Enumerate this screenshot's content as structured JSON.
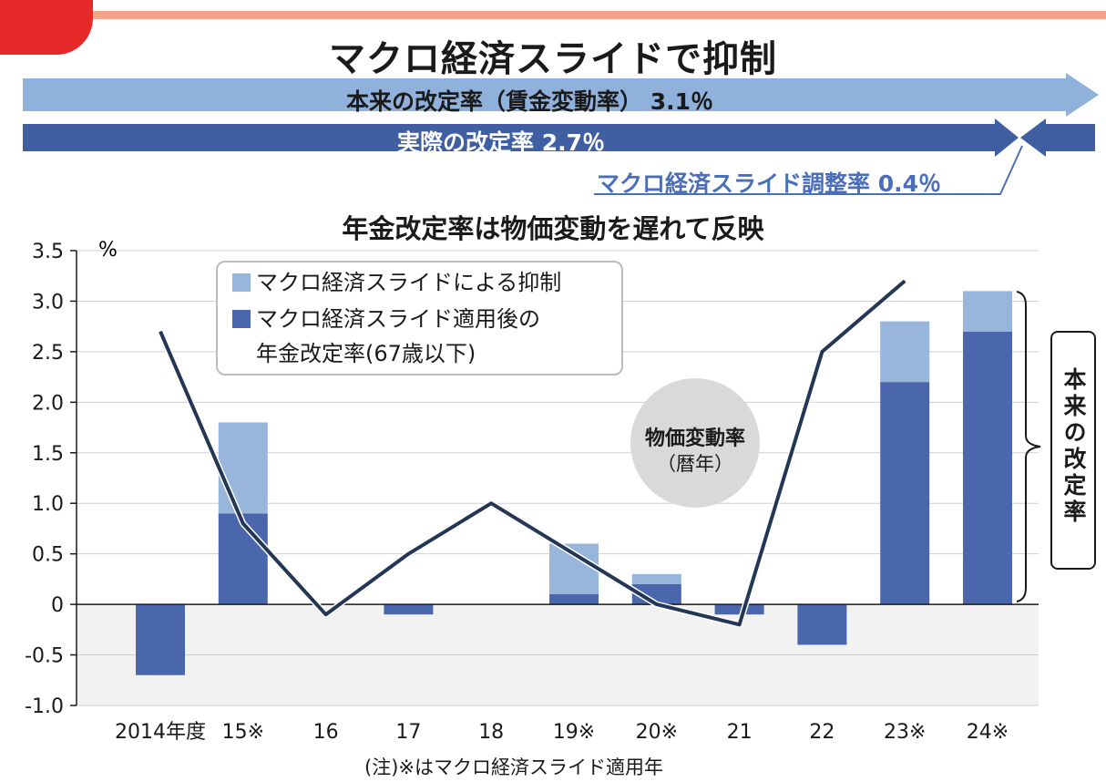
{
  "header": {
    "title": "マクロ経済スライドで抑制",
    "arrow_original": "本来の改定率（賃金変動率） 3.1％",
    "arrow_actual": "実際の改定率 2.7％",
    "macro_adjustment": "マクロ経済スライド調整率 0.4％"
  },
  "subtitle": "年金改定率は物価変動を遅れて反映",
  "legend": {
    "suppression": "マクロ経済スライドによる抑制",
    "applied_line1": "マクロ経済スライド適用後の",
    "applied_line2": "年金改定率(67歳以下)"
  },
  "price_bubble": {
    "label": "物価変動率",
    "sub": "（暦年）"
  },
  "side_label": "本来の改定率",
  "note": "(注)※はマクロ経済スライド適用年",
  "colors": {
    "suppression": "#98b5dc",
    "applied": "#4a66ac",
    "line": "#243656",
    "arrow_light": "#8fb1db",
    "arrow_dark": "#3f5fa2",
    "accent_red": "#e62a2a"
  },
  "chart_data": {
    "type": "bar",
    "title": "年金改定率は物価変動を遅れて反映",
    "ylabel": "%",
    "ylim": [
      -1.0,
      3.5
    ],
    "yticks": [
      3.5,
      3.0,
      2.5,
      2.0,
      1.5,
      1.0,
      0.5,
      0,
      -0.5,
      -1.0
    ],
    "ytick_labels": [
      "3.5",
      "3.0",
      "2.5",
      "2.0",
      "1.5",
      "1.0",
      "0.5",
      "0",
      "-0.5",
      "-1.0"
    ],
    "categories": [
      "2014年度",
      "15※",
      "16",
      "17",
      "18",
      "19※",
      "20※",
      "21",
      "22",
      "23※",
      "24※"
    ],
    "series": [
      {
        "name": "マクロ経済スライド適用後の年金改定率(67歳以下)",
        "kind": "bar-applied",
        "values": [
          -0.7,
          0.9,
          0,
          -0.1,
          0,
          0.1,
          0.2,
          -0.1,
          -0.4,
          2.2,
          2.7
        ]
      },
      {
        "name": "マクロ経済スライドによる抑制",
        "kind": "bar-suppression",
        "values": [
          0,
          0.9,
          0,
          0,
          0,
          0.5,
          0.1,
          0,
          0,
          0.6,
          0.4
        ]
      },
      {
        "name": "物価変動率（暦年）",
        "kind": "line",
        "values": [
          2.7,
          0.8,
          -0.1,
          0.5,
          1.0,
          0.5,
          0.0,
          -0.2,
          2.5,
          3.2,
          null
        ]
      }
    ],
    "grid": true,
    "legend_position": "top-left"
  }
}
